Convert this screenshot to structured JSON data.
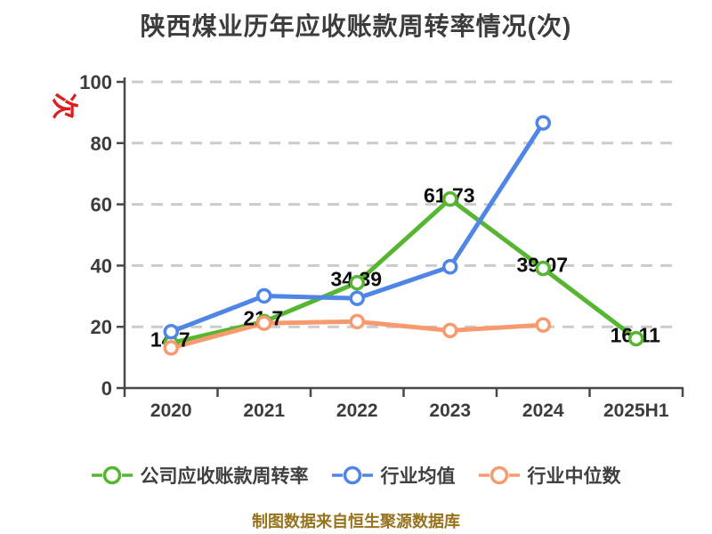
{
  "title": "陕西煤业历年应收账款周转率情况(次)",
  "y_axis_unit": "次",
  "caption": "制图数据来自恒生聚源数据库",
  "colors": {
    "title": "#3c3c3c",
    "axis": "#484848",
    "grid": "#cbcbcb",
    "unit_red": "#dc1e1e",
    "caption_gold": "#97731c",
    "series_green": "#57b631",
    "series_blue": "#4e85e6",
    "series_orange": "#f89a6d"
  },
  "chart_data": {
    "type": "line",
    "title": "陕西煤业历年应收账款周转率情况(次)",
    "xlabel": "",
    "ylabel": "次",
    "categories": [
      "2020",
      "2021",
      "2022",
      "2023",
      "2024",
      "2025H1"
    ],
    "yticks": [
      0,
      20,
      40,
      60,
      80,
      100
    ],
    "ylim": [
      0,
      100
    ],
    "grid": true,
    "grid_style": "dashed",
    "legend_position": "bottom",
    "marker": "circle-white-fill",
    "series": [
      {
        "name": "公司应收账款周转率",
        "color_key": "series_green",
        "values": [
          14.7,
          21.7,
          34.39,
          61.73,
          39.07,
          16.11
        ],
        "labels": [
          "14.7",
          "21.7",
          "34.39",
          "61.73",
          "39.07",
          "16.11"
        ]
      },
      {
        "name": "行业均值",
        "color_key": "series_blue",
        "values": [
          18.4,
          30.1,
          29.3,
          39.6,
          86.6,
          null
        ],
        "labels": null
      },
      {
        "name": "行业中位数",
        "color_key": "series_orange",
        "values": [
          13.1,
          21.2,
          21.7,
          18.8,
          20.6,
          null
        ],
        "labels": null
      }
    ]
  }
}
